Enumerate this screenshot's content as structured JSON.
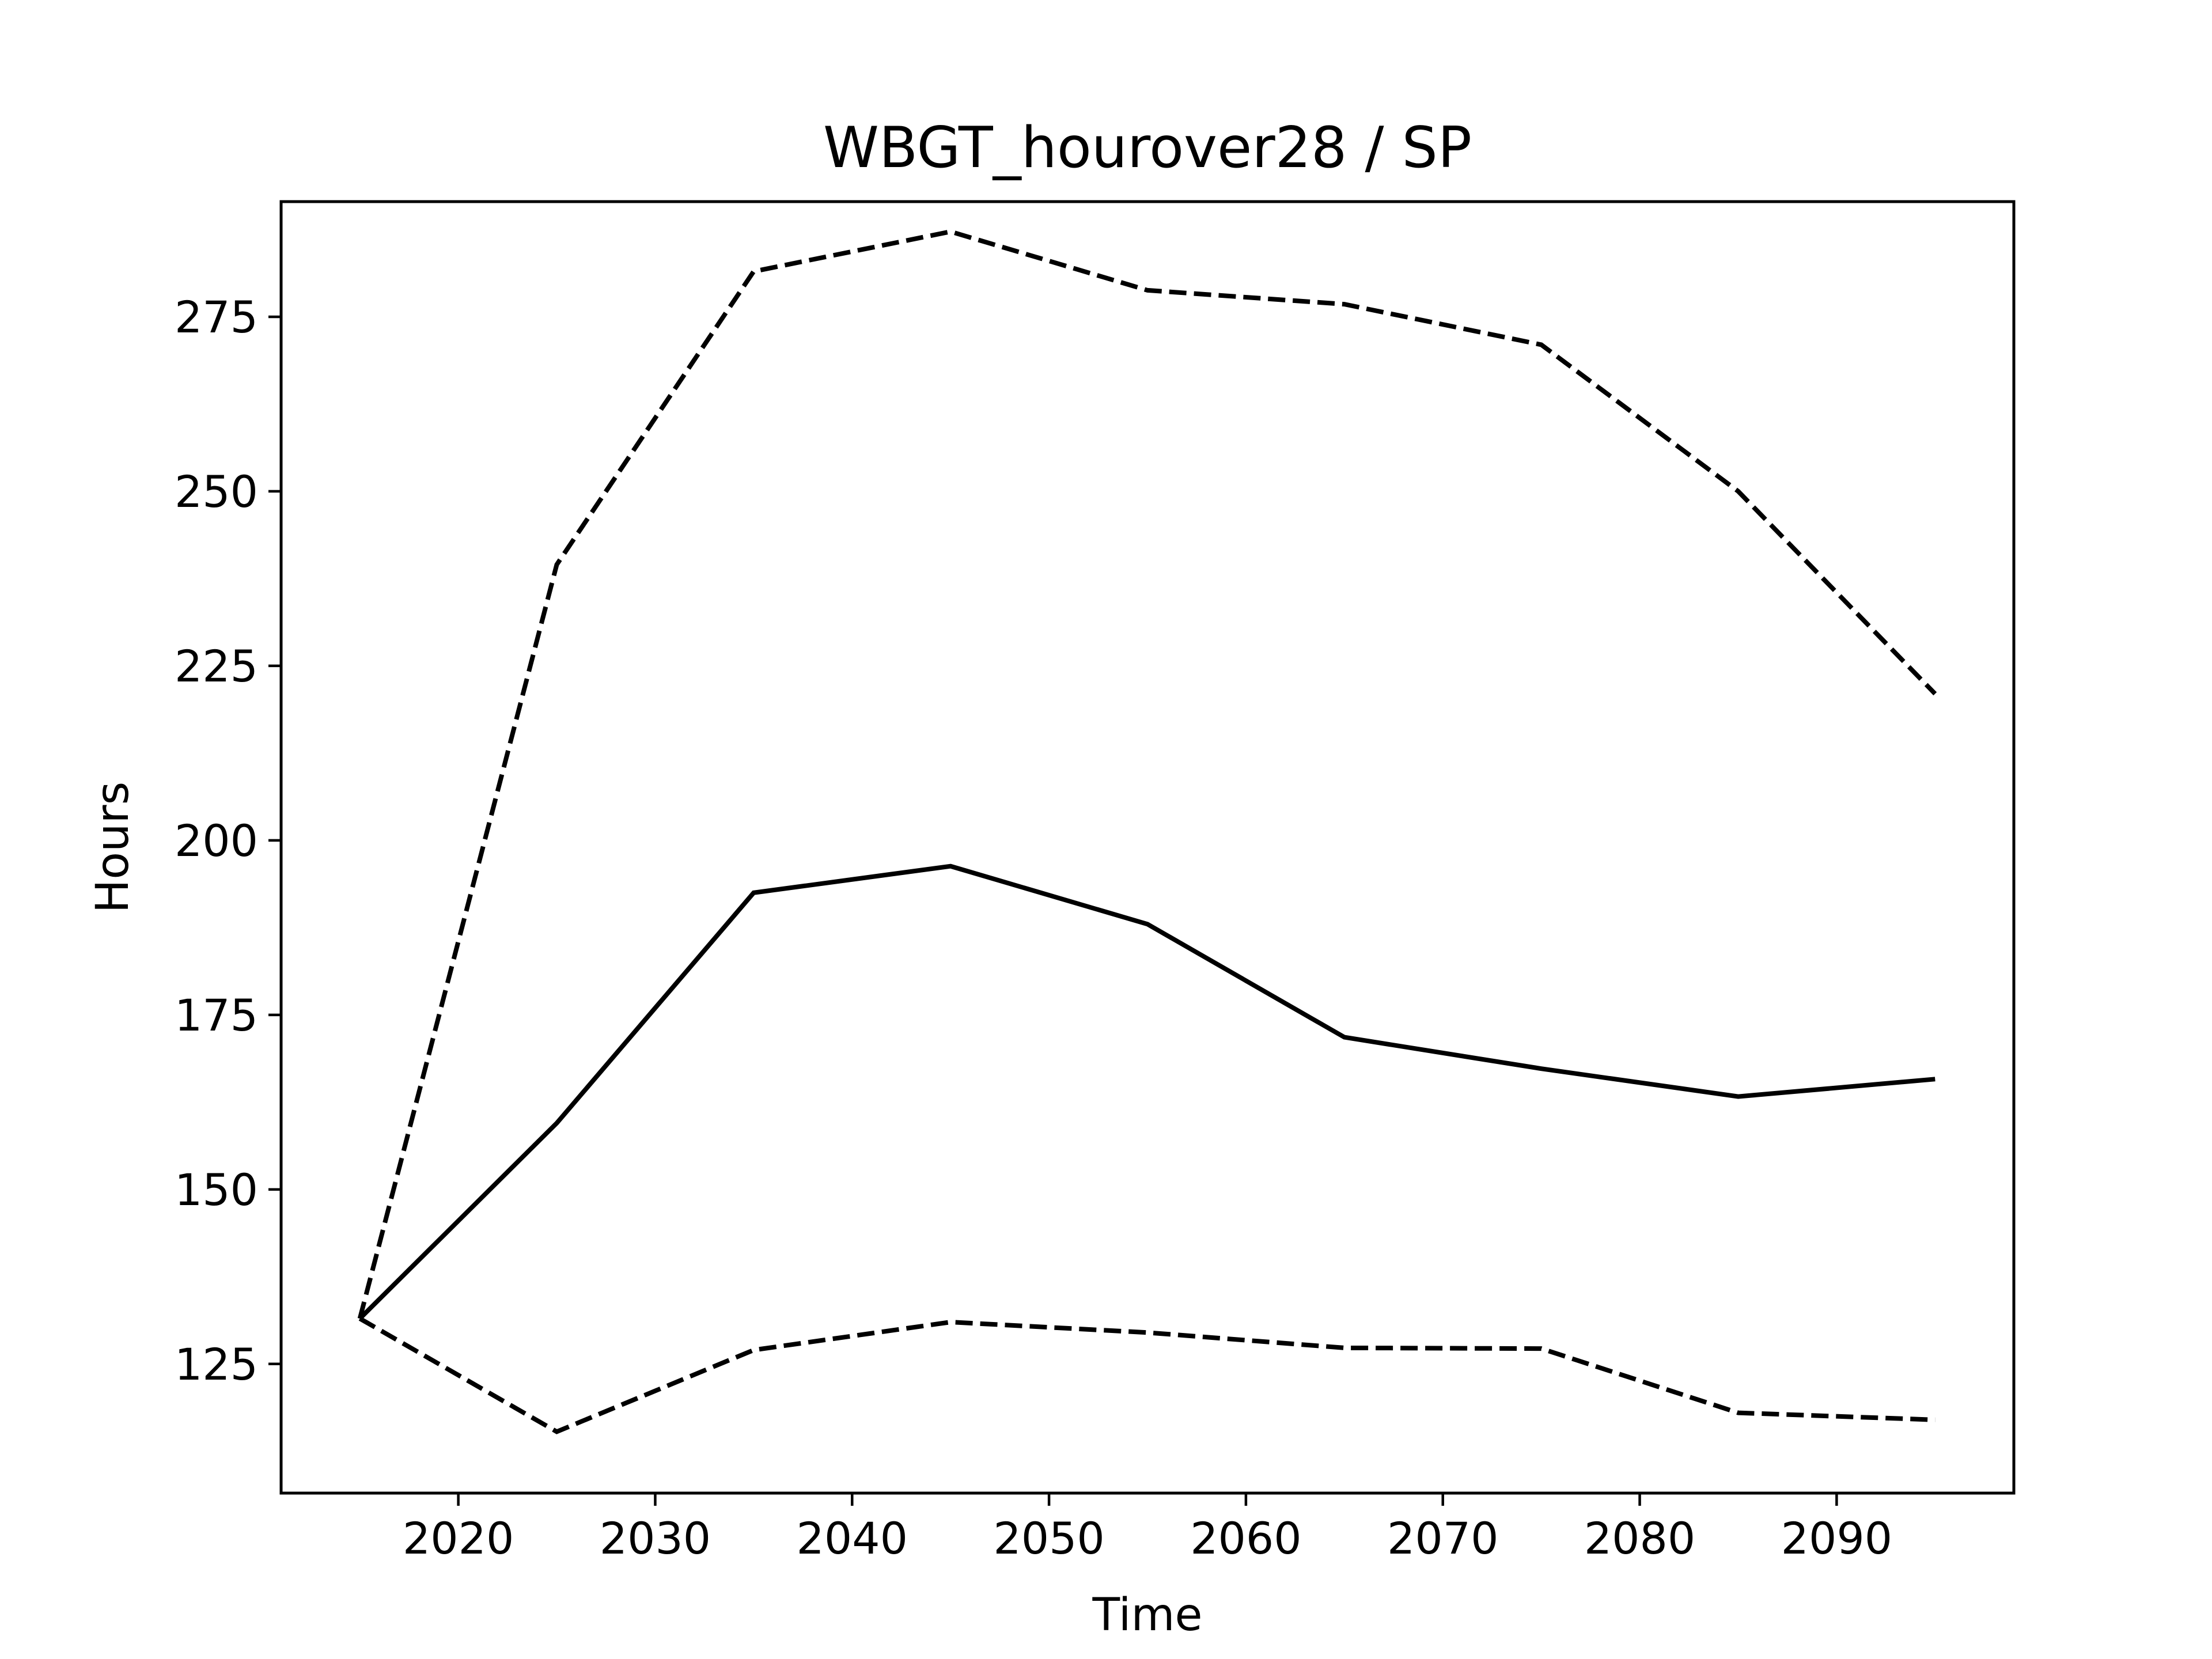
{
  "chart_data": {
    "type": "line",
    "title": "WBGT_hourover28 / SP",
    "xlabel": "Time",
    "ylabel": "Hours",
    "xlim": [
      2011,
      2099
    ],
    "ylim": [
      106.5,
      291.5
    ],
    "xticks": [
      2020,
      2030,
      2040,
      2050,
      2060,
      2070,
      2080,
      2090
    ],
    "yticks": [
      125,
      150,
      175,
      200,
      225,
      250,
      275
    ],
    "grid": false,
    "legend": "none",
    "line_color": "#000000",
    "x": [
      2015,
      2025,
      2035,
      2045,
      2055,
      2065,
      2075,
      2085,
      2095
    ],
    "series": [
      {
        "style": "solid",
        "values": [
          131.5,
          159.5,
          192.5,
          196.3,
          188.0,
          171.8,
          167.3,
          163.3,
          165.8
        ]
      },
      {
        "style": "dashed",
        "values": [
          131.5,
          239.5,
          281.5,
          287.2,
          278.8,
          276.8,
          271.0,
          250.0,
          221.0
        ]
      },
      {
        "style": "dashed",
        "values": [
          131.5,
          115.3,
          127.0,
          131.0,
          129.5,
          127.3,
          127.2,
          118.0,
          117.0
        ]
      }
    ]
  }
}
